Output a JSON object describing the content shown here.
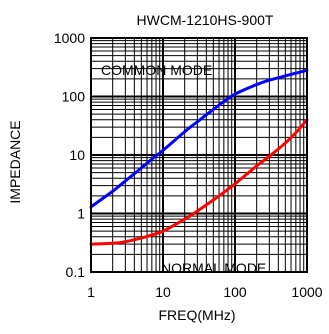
{
  "chart_data": {
    "type": "line",
    "title": "HWCM-1210HS-900T",
    "xlabel": "FREQ(MHz)",
    "ylabel": "IMPEDANCE",
    "x_scale": "log",
    "y_scale": "log",
    "xlim": [
      1,
      1000
    ],
    "ylim": [
      0.1,
      1000
    ],
    "x_ticks": [
      1,
      10,
      100,
      1000
    ],
    "x_tick_labels": [
      "1",
      "10",
      "100",
      "1000"
    ],
    "y_ticks": [
      0.1,
      1,
      10,
      100,
      1000
    ],
    "y_tick_labels": [
      "0.1",
      "1",
      "10",
      "100",
      "1000"
    ],
    "grid": true,
    "series": [
      {
        "name": "COMMON MODE",
        "color": "#0000ff",
        "x": [
          1,
          2,
          3,
          5,
          7,
          10,
          20,
          30,
          50,
          70,
          100,
          200,
          300,
          500,
          700,
          1000
        ],
        "y": [
          1.3,
          2.4,
          3.6,
          6,
          8.5,
          12,
          25,
          37,
          60,
          82,
          110,
          160,
          190,
          225,
          250,
          280
        ]
      },
      {
        "name": "NORMAL MODE",
        "color": "#ff0000",
        "x": [
          1,
          2,
          3,
          5,
          7,
          10,
          20,
          30,
          50,
          70,
          100,
          200,
          300,
          500,
          700,
          1000
        ],
        "y": [
          0.3,
          0.31,
          0.33,
          0.38,
          0.43,
          0.5,
          0.8,
          1.1,
          1.7,
          2.3,
          3.2,
          6.5,
          9.5,
          16,
          24,
          40
        ]
      }
    ],
    "annotations": [
      "COMMON MODE",
      "NORMAL MODE"
    ]
  }
}
